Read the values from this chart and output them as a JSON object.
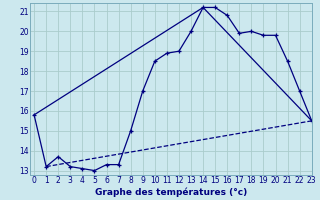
{
  "xlabel": "Graphe des températures (°c)",
  "bg_color": "#cce8ee",
  "grid_color": "#aacccc",
  "line_color": "#000080",
  "line1_x": [
    0,
    1,
    2,
    3,
    4,
    5,
    6,
    7,
    8,
    9,
    10,
    11,
    12,
    13,
    14,
    15,
    16,
    17,
    18,
    19,
    20,
    21,
    22,
    23
  ],
  "line1_y": [
    15.8,
    13.2,
    13.7,
    13.2,
    13.1,
    13.0,
    13.3,
    13.3,
    15.0,
    17.0,
    18.5,
    18.9,
    19.0,
    20.0,
    21.2,
    21.2,
    20.8,
    19.9,
    20.0,
    19.8,
    19.8,
    18.5,
    17.0,
    15.5
  ],
  "line2_x": [
    1,
    23
  ],
  "line2_y": [
    13.2,
    15.5
  ],
  "line3_x": [
    0,
    14,
    23
  ],
  "line3_y": [
    15.8,
    21.2,
    15.5
  ],
  "ylim": [
    12.8,
    21.4
  ],
  "xlim": [
    -0.3,
    23
  ],
  "yticks": [
    13,
    14,
    15,
    16,
    17,
    18,
    19,
    20,
    21
  ],
  "xticks": [
    0,
    1,
    2,
    3,
    4,
    5,
    6,
    7,
    8,
    9,
    10,
    11,
    12,
    13,
    14,
    15,
    16,
    17,
    18,
    19,
    20,
    21,
    22,
    23
  ],
  "tick_fontsize": 5.5,
  "xlabel_fontsize": 6.5
}
